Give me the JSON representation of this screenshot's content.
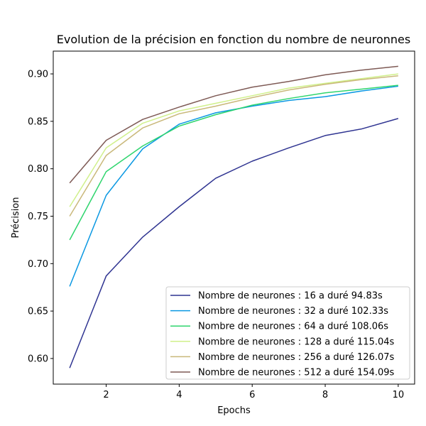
{
  "chart_data": {
    "type": "line",
    "title": "Evolution de la précision en fonction du nombre de neuronnes",
    "xlabel": "Epochs",
    "ylabel": "Précision",
    "xlim": [
      0.55,
      10.45
    ],
    "ylim": [
      0.573,
      0.924
    ],
    "xticks": [
      2,
      4,
      6,
      8,
      10
    ],
    "yticks": [
      0.6,
      0.65,
      0.7,
      0.75,
      0.8,
      0.85,
      0.9
    ],
    "ytick_labels": [
      "0.60",
      "0.65",
      "0.70",
      "0.75",
      "0.80",
      "0.85",
      "0.90"
    ],
    "grid": false,
    "legend_position": "lower-right",
    "x": [
      1,
      2,
      3,
      4,
      5,
      6,
      7,
      8,
      9,
      10
    ],
    "series": [
      {
        "name": "Nombre de neurones : 16 a duré 94.83s",
        "color": "#2f3491",
        "values": [
          0.59,
          0.687,
          0.728,
          0.76,
          0.79,
          0.808,
          0.822,
          0.835,
          0.842,
          0.853
        ]
      },
      {
        "name": "Nombre de neurones : 32 a duré 102.33s",
        "color": "#0a98e2",
        "values": [
          0.676,
          0.772,
          0.821,
          0.847,
          0.859,
          0.866,
          0.872,
          0.876,
          0.882,
          0.887
        ]
      },
      {
        "name": "Nombre de neurones : 64 a duré 108.06s",
        "color": "#2fd56e",
        "values": [
          0.725,
          0.797,
          0.824,
          0.845,
          0.857,
          0.867,
          0.874,
          0.88,
          0.884,
          0.888
        ]
      },
      {
        "name": "Nombre de neurones : 128 a duré 115.04s",
        "color": "#d0f08a",
        "values": [
          0.76,
          0.822,
          0.848,
          0.861,
          0.869,
          0.877,
          0.885,
          0.89,
          0.895,
          0.9
        ]
      },
      {
        "name": "Nombre de neurones : 256 a duré 126.07s",
        "color": "#c9b87a",
        "values": [
          0.75,
          0.814,
          0.843,
          0.858,
          0.866,
          0.875,
          0.883,
          0.889,
          0.894,
          0.898
        ]
      },
      {
        "name": "Nombre de neurones : 512 a duré 154.09s",
        "color": "#7e5a55",
        "values": [
          0.785,
          0.83,
          0.852,
          0.865,
          0.877,
          0.886,
          0.892,
          0.899,
          0.904,
          0.908
        ]
      }
    ]
  }
}
